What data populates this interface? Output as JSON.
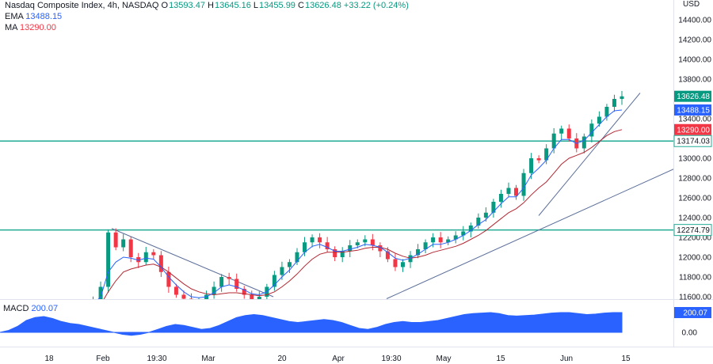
{
  "header": {
    "title": "Nasdaq Composite Index, 4h, NASDAQ",
    "open_label": "O",
    "open": "13593.47",
    "high_label": "H",
    "high": "13645.16",
    "low_label": "L",
    "low": "13455.99",
    "close_label": "C",
    "close": "13626.48",
    "change": "+33.22 (+0.24%)",
    "ema_label": "EMA",
    "ema_value": "13488.15",
    "ma_label": "MA",
    "ma_value": "13290.00"
  },
  "macd": {
    "label": "MACD",
    "value": "200.07"
  },
  "price_axis": {
    "currency": "USD",
    "ticks": [
      "14400.00",
      "14200.00",
      "14000.00",
      "13800.00",
      "13400.00",
      "13000.00",
      "12800.00",
      "12600.00",
      "12400.00",
      "12200.00",
      "12000.00",
      "11800.00",
      "11600.00"
    ],
    "tags": [
      {
        "text": "13626.48",
        "color": "#089981",
        "price": 13626.48
      },
      {
        "text": "13488.15",
        "color": "#2962ff",
        "price": 13488.15
      },
      {
        "text": "13290.00",
        "color": "#f23645",
        "price": 13290.0
      },
      {
        "text": "13174.03",
        "color": "#131722",
        "price": 13174.03,
        "outline": "#22ab94"
      },
      {
        "text": "12274.79",
        "color": "#131722",
        "price": 12274.79,
        "outline": "#22ab94"
      }
    ]
  },
  "macd_axis": {
    "ticks": [
      "0.00"
    ],
    "tag": "200.07"
  },
  "time_axis": {
    "ticks": [
      "18",
      "Feb",
      "19:30",
      "Mar",
      "20",
      "Apr",
      "19:30",
      "May",
      "15",
      "Jun",
      "15"
    ]
  },
  "colors": {
    "up": "#089981",
    "down": "#f23645",
    "ema": "#2962ff",
    "ma": "#b22833",
    "level": "#22ab94",
    "trend": "#5b6e9a",
    "macd": "#2962ff"
  },
  "chart_data": {
    "type": "candlestick",
    "title": "Nasdaq Composite Index, 4h, NASDAQ",
    "y_range": [
      11600,
      14500
    ],
    "horizontal_levels": [
      13174.03,
      12274.79
    ],
    "x_ticks": [
      "18",
      "Feb",
      "19:30",
      "Mar",
      "20",
      "Apr",
      "19:30",
      "May",
      "15",
      "Jun",
      "15"
    ],
    "close_series": [
      11500,
      11560,
      11700,
      12250,
      12100,
      12180,
      12000,
      11950,
      12050,
      12020,
      11850,
      11700,
      11620,
      11580,
      11540,
      11560,
      11620,
      11700,
      11800,
      11780,
      11680,
      11620,
      11560,
      11600,
      11700,
      11820,
      11900,
      11950,
      12050,
      12150,
      12200,
      12150,
      12080,
      12000,
      12060,
      12120,
      12150,
      12180,
      12120,
      12060,
      11980,
      11900,
      11950,
      12020,
      12080,
      12150,
      12200,
      12150,
      12180,
      12220,
      12260,
      12320,
      12400,
      12450,
      12560,
      12640,
      12700,
      12620,
      12850,
      13000,
      12980,
      13100,
      13250,
      13300,
      13200,
      13100,
      13220,
      13350,
      13420,
      13520,
      13600,
      13626
    ],
    "ema_series": [
      11480,
      11520,
      11600,
      11850,
      11950,
      12000,
      11990,
      11970,
      11990,
      11980,
      11900,
      11800,
      11720,
      11650,
      11600,
      11590,
      11600,
      11640,
      11700,
      11720,
      11700,
      11670,
      11630,
      11620,
      11650,
      11720,
      11800,
      11870,
      11960,
      12050,
      12110,
      12130,
      12100,
      12060,
      12060,
      12080,
      12100,
      12130,
      12120,
      12100,
      12050,
      11990,
      11970,
      11990,
      12030,
      12080,
      12130,
      12130,
      12150,
      12180,
      12220,
      12270,
      12330,
      12380,
      12460,
      12540,
      12610,
      12610,
      12700,
      12830,
      12900,
      12980,
      13100,
      13190,
      13190,
      13150,
      13180,
      13260,
      13340,
      13420,
      13480,
      13488
    ],
    "ma_series": [
      11450,
      11480,
      11520,
      11650,
      11760,
      11850,
      11880,
      11900,
      11920,
      11930,
      11900,
      11850,
      11790,
      11730,
      11680,
      11650,
      11630,
      11620,
      11630,
      11640,
      11640,
      11630,
      11620,
      11610,
      11620,
      11650,
      11700,
      11760,
      11830,
      11910,
      11980,
      12030,
      12050,
      12050,
      12050,
      12060,
      12070,
      12090,
      12100,
      12100,
      12080,
      12040,
      12010,
      11990,
      12000,
      12020,
      12050,
      12070,
      12090,
      12110,
      12140,
      12180,
      12220,
      12270,
      12330,
      12390,
      12450,
      12490,
      12550,
      12630,
      12700,
      12760,
      12850,
      12940,
      13000,
      13030,
      13060,
      13110,
      13170,
      13230,
      13270,
      13290
    ],
    "macd_histogram": [
      0,
      20,
      60,
      120,
      150,
      160,
      140,
      110,
      90,
      80,
      60,
      40,
      20,
      0,
      -20,
      -30,
      -20,
      0,
      30,
      60,
      80,
      70,
      50,
      30,
      40,
      70,
      110,
      150,
      170,
      180,
      170,
      150,
      130,
      110,
      100,
      110,
      120,
      130,
      120,
      100,
      70,
      40,
      30,
      50,
      80,
      100,
      110,
      100,
      100,
      110,
      120,
      140,
      160,
      180,
      190,
      195,
      200,
      190,
      170,
      165,
      170,
      175,
      185,
      195,
      200,
      200,
      190,
      180,
      185,
      195,
      200,
      200.07
    ],
    "macd_range": [
      -100,
      250
    ],
    "macd_value": 200.07
  }
}
